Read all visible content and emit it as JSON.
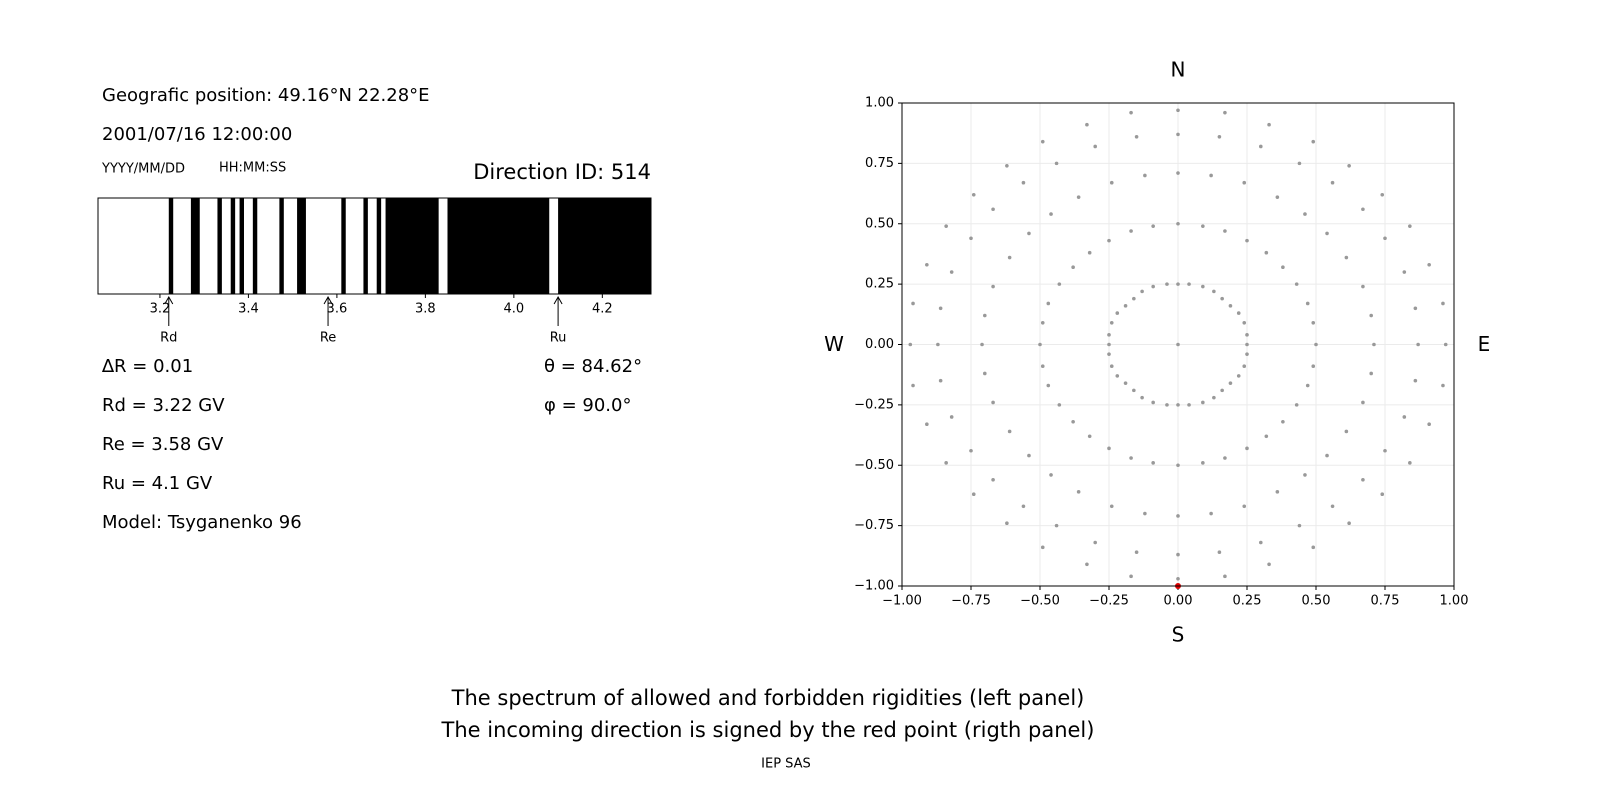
{
  "header": {
    "position": "Geografic position: 49.16°N 22.28°E",
    "datetime": "2001/07/16 12:00:00",
    "date_format": "YYYY/MM/DD",
    "time_format": "HH:MM:SS",
    "direction": "Direction ID: 514"
  },
  "params_left": [
    "∆R = 0.01",
    "Rd = 3.22 GV",
    "Re = 3.58 GV",
    "Ru = 4.1 GV",
    "Model: Tsyganenko 96"
  ],
  "params_right": [
    "θ = 84.62°",
    "φ = 90.0°"
  ],
  "chart_data": [
    {
      "type": "spectrum",
      "color": "#000000",
      "bands": [
        [
          3.22,
          3.23
        ],
        [
          3.27,
          3.29
        ],
        [
          3.33,
          3.34
        ],
        [
          3.36,
          3.37
        ],
        [
          3.38,
          3.39
        ],
        [
          3.41,
          3.42
        ],
        [
          3.47,
          3.48
        ],
        [
          3.51,
          3.53
        ],
        [
          3.61,
          3.62
        ],
        [
          3.66,
          3.67
        ],
        [
          3.69,
          3.7
        ],
        [
          3.71,
          3.83
        ],
        [
          3.85,
          4.08
        ],
        [
          4.1,
          4.31
        ]
      ],
      "xlim": [
        3.06,
        4.31
      ],
      "xticks": [
        3.2,
        3.4,
        3.6,
        3.8,
        {
          "value": 4,
          "label": "4.0"
        },
        4.2
      ],
      "markers": [
        {
          "label": "Rd",
          "value": 3.22
        },
        {
          "label": "Re",
          "value": 3.58
        },
        {
          "label": "Ru",
          "value": 4.1
        }
      ]
    },
    {
      "type": "scatter",
      "color": "#999999",
      "grid": true,
      "top_label": "N",
      "bottom_label": "S",
      "left_label": "W",
      "right_label": "E",
      "xlim": [
        -1,
        1
      ],
      "ylim": [
        -1,
        1
      ],
      "xticks": [
        {
          "value": -1,
          "label": "−1.00"
        },
        {
          "value": -0.75,
          "label": "−0.75"
        },
        {
          "value": -0.5,
          "label": "−0.50"
        },
        {
          "value": -0.25,
          "label": "−0.25"
        },
        {
          "value": 0,
          "label": "0.00"
        },
        {
          "value": 0.25,
          "label": "0.25"
        },
        {
          "value": 0.5,
          "label": "0.50"
        },
        {
          "value": 0.75,
          "label": "0.75"
        },
        {
          "value": 1,
          "label": "1.00"
        }
      ],
      "yticks": [
        {
          "value": -1,
          "label": "−1.00"
        },
        {
          "value": -0.75,
          "label": "−0.75"
        },
        {
          "value": -0.5,
          "label": "−0.50"
        },
        {
          "value": -0.25,
          "label": "−0.25"
        },
        {
          "value": 0,
          "label": "0.00"
        },
        {
          "value": 0.25,
          "label": "0.25"
        },
        {
          "value": 0.5,
          "label": "0.50"
        },
        {
          "value": 0.75,
          "label": "0.75"
        },
        {
          "value": 1,
          "label": "1.00"
        }
      ],
      "x": [
        0,
        0,
        0.04,
        0.09,
        0.13,
        0.16,
        0.19,
        0.22,
        0.24,
        0.25,
        0.25,
        0.25,
        0.24,
        0.22,
        0.19,
        0.16,
        0.13,
        0.09,
        0.04,
        0,
        -0.04,
        -0.09,
        -0.13,
        -0.16,
        -0.19,
        -0.22,
        -0.24,
        -0.25,
        -0.25,
        -0.25,
        -0.24,
        -0.22,
        -0.19,
        -0.16,
        -0.13,
        -0.09,
        -0.04,
        0,
        0.09,
        0.17,
        0.25,
        0.32,
        0.38,
        0.43,
        0.47,
        0.49,
        0.5,
        0.49,
        0.47,
        0.43,
        0.38,
        0.32,
        0.25,
        0.17,
        0.09,
        0,
        -0.09,
        -0.17,
        -0.25,
        -0.32,
        -0.38,
        -0.43,
        -0.47,
        -0.49,
        -0.5,
        -0.49,
        -0.47,
        -0.43,
        -0.38,
        -0.32,
        -0.25,
        -0.17,
        -0.09,
        0,
        0.12,
        0.24,
        0.36,
        0.46,
        0.54,
        0.61,
        0.67,
        0.7,
        0.71,
        0.7,
        0.67,
        0.61,
        0.54,
        0.46,
        0.36,
        0.24,
        0.12,
        0,
        -0.12,
        -0.24,
        -0.36,
        -0.46,
        -0.54,
        -0.61,
        -0.67,
        -0.7,
        -0.71,
        -0.7,
        -0.67,
        -0.61,
        -0.54,
        -0.46,
        -0.36,
        -0.24,
        -0.12,
        0,
        0.15,
        0.3,
        0.44,
        0.56,
        0.67,
        0.75,
        0.82,
        0.86,
        0.87,
        0.86,
        0.82,
        0.75,
        0.67,
        0.56,
        0.44,
        0.3,
        0.15,
        0,
        -0.15,
        -0.3,
        -0.44,
        -0.56,
        -0.67,
        -0.75,
        -0.82,
        -0.86,
        -0.87,
        -0.86,
        -0.82,
        -0.75,
        -0.67,
        -0.56,
        -0.44,
        -0.3,
        -0.15,
        0,
        0.17,
        0.33,
        0.49,
        0.62,
        0.74,
        0.84,
        0.91,
        0.96,
        0.97,
        0.96,
        0.91,
        0.84,
        0.74,
        0.62,
        0.49,
        0.33,
        0.17,
        0,
        -0.17,
        -0.33,
        -0.49,
        -0.62,
        -0.74,
        -0.84,
        -0.91,
        -0.96,
        -0.97,
        -0.96,
        -0.91,
        -0.84,
        -0.74,
        -0.62,
        -0.49,
        -0.33,
        -0.17
      ],
      "y": [
        0,
        0.25,
        0.25,
        0.24,
        0.22,
        0.19,
        0.16,
        0.13,
        0.09,
        0.04,
        0,
        -0.04,
        -0.09,
        -0.13,
        -0.16,
        -0.19,
        -0.22,
        -0.24,
        -0.25,
        -0.25,
        -0.25,
        -0.24,
        -0.22,
        -0.19,
        -0.16,
        -0.13,
        -0.09,
        -0.04,
        0,
        0.04,
        0.09,
        0.13,
        0.16,
        0.19,
        0.22,
        0.24,
        0.25,
        0.5,
        0.49,
        0.47,
        0.43,
        0.38,
        0.32,
        0.25,
        0.17,
        0.09,
        0,
        -0.09,
        -0.17,
        -0.25,
        -0.32,
        -0.38,
        -0.43,
        -0.47,
        -0.49,
        -0.5,
        -0.49,
        -0.47,
        -0.43,
        -0.38,
        -0.32,
        -0.25,
        -0.17,
        -0.09,
        0,
        0.09,
        0.17,
        0.25,
        0.32,
        0.38,
        0.43,
        0.47,
        0.49,
        0.71,
        0.7,
        0.67,
        0.61,
        0.54,
        0.46,
        0.36,
        0.24,
        0.12,
        0,
        -0.12,
        -0.24,
        -0.36,
        -0.46,
        -0.54,
        -0.61,
        -0.67,
        -0.7,
        -0.71,
        -0.7,
        -0.67,
        -0.61,
        -0.54,
        -0.46,
        -0.36,
        -0.24,
        -0.12,
        0,
        0.12,
        0.24,
        0.36,
        0.46,
        0.54,
        0.61,
        0.67,
        0.7,
        0.87,
        0.86,
        0.82,
        0.75,
        0.67,
        0.56,
        0.44,
        0.3,
        0.15,
        0,
        -0.15,
        -0.3,
        -0.44,
        -0.56,
        -0.67,
        -0.75,
        -0.82,
        -0.86,
        -0.87,
        -0.86,
        -0.82,
        -0.75,
        -0.67,
        -0.56,
        -0.44,
        -0.3,
        -0.15,
        0,
        0.15,
        0.3,
        0.44,
        0.56,
        0.67,
        0.75,
        0.82,
        0.86,
        0.97,
        0.96,
        0.91,
        0.84,
        0.74,
        0.62,
        0.49,
        0.33,
        0.17,
        0,
        -0.17,
        -0.33,
        -0.49,
        -0.62,
        -0.74,
        -0.84,
        -0.91,
        -0.96,
        -0.97,
        -0.96,
        -0.91,
        -0.84,
        -0.74,
        -0.62,
        -0.49,
        -0.33,
        -0.17,
        0,
        0.17,
        0.33,
        0.49,
        0.62,
        0.74,
        0.84,
        0.91,
        0.96
      ],
      "highlight": {
        "x": 0,
        "y": -1,
        "color": "#dd0000"
      }
    }
  ],
  "footer": {
    "caption": [
      "The spectrum of allowed and forbidden rigidities (left panel)",
      "The incoming direction is signed by the red point (rigth panel)"
    ],
    "credit": "IEP SAS"
  }
}
